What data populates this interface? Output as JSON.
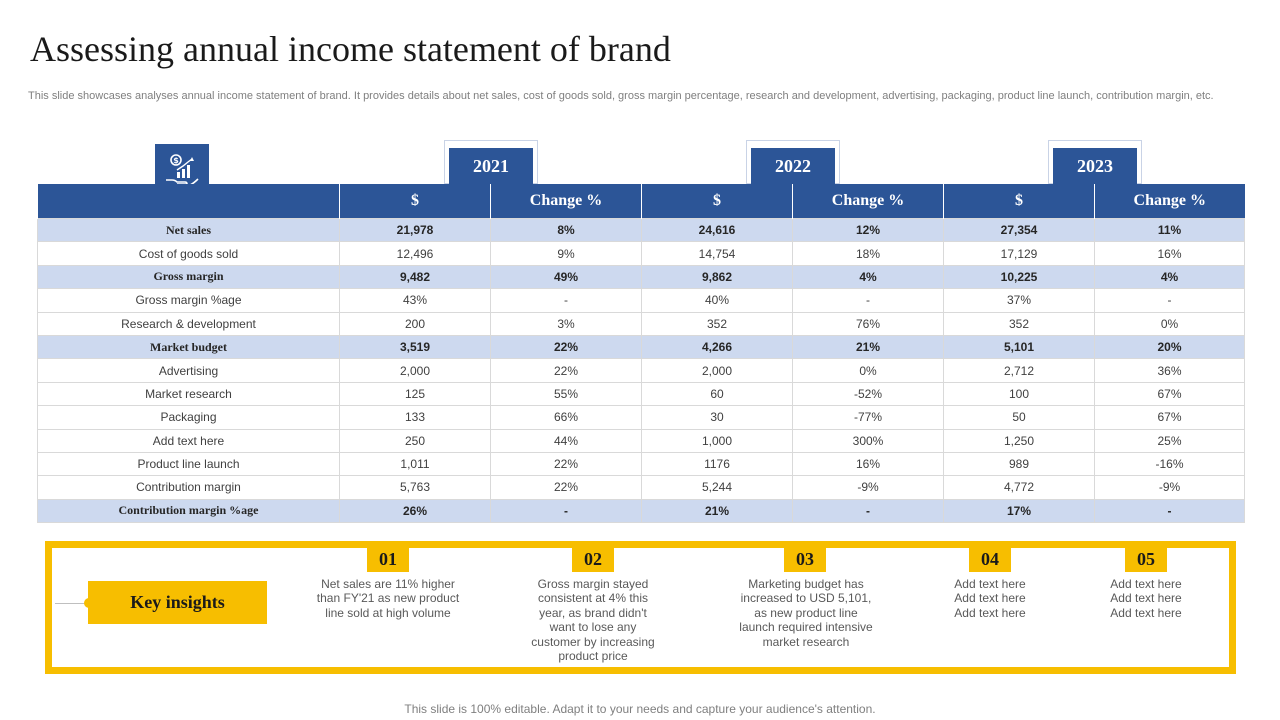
{
  "title": "Assessing annual income statement of brand",
  "subtitle": "This slide showcases analyses annual income statement of brand. It provides details about net sales, cost of goods sold, gross margin percentage, research and development, advertising, packaging, product line launch, contribution margin, etc.",
  "icon": "money-hand-growth-chart-icon",
  "years": [
    "2021",
    "2022",
    "2023"
  ],
  "headers": [
    "$",
    "Change %",
    "$",
    "Change %",
    "$",
    "Change %"
  ],
  "rows": [
    {
      "label": "Net sales",
      "highlight": true,
      "values": [
        "21,978",
        "8%",
        "24,616",
        "12%",
        "27,354",
        "11%"
      ]
    },
    {
      "label": "Cost of goods sold",
      "highlight": false,
      "values": [
        "12,496",
        "9%",
        "14,754",
        "18%",
        "17,129",
        "16%"
      ]
    },
    {
      "label": "Gross margin",
      "highlight": true,
      "values": [
        "9,482",
        "49%",
        "9,862",
        "4%",
        "10,225",
        "4%"
      ]
    },
    {
      "label": "Gross margin %age",
      "highlight": false,
      "values": [
        "43%",
        "-",
        "40%",
        "-",
        "37%",
        "-"
      ]
    },
    {
      "label": "Research & development",
      "highlight": false,
      "values": [
        "200",
        "3%",
        "352",
        "76%",
        "352",
        "0%"
      ]
    },
    {
      "label": "Market budget",
      "highlight": true,
      "values": [
        "3,519",
        "22%",
        "4,266",
        "21%",
        "5,101",
        "20%"
      ]
    },
    {
      "label": "Advertising",
      "highlight": false,
      "values": [
        "2,000",
        "22%",
        "2,000",
        "0%",
        "2,712",
        "36%"
      ]
    },
    {
      "label": "Market research",
      "highlight": false,
      "values": [
        "125",
        "55%",
        "60",
        "-52%",
        "100",
        "67%"
      ]
    },
    {
      "label": "Packaging",
      "highlight": false,
      "values": [
        "133",
        "66%",
        "30",
        "-77%",
        "50",
        "67%"
      ]
    },
    {
      "label": "Add text here",
      "highlight": false,
      "values": [
        "250",
        "44%",
        "1,000",
        "300%",
        "1,250",
        "25%"
      ]
    },
    {
      "label": "Product line launch",
      "highlight": false,
      "values": [
        "1,011",
        "22%",
        "1176",
        "16%",
        "989",
        "-16%"
      ]
    },
    {
      "label": "Contribution margin",
      "highlight": false,
      "values": [
        "5,763",
        "22%",
        "5,244",
        "-9%",
        "4,772",
        "-9%"
      ]
    },
    {
      "label": "Contribution  margin %age",
      "highlight": true,
      "values": [
        "26%",
        "-",
        "21%",
        "-",
        "17%",
        "-"
      ]
    }
  ],
  "key_insights_label": "Key insights",
  "insights": [
    {
      "num": "01",
      "text": "Net sales are 11% higher than FY'21 as new product line sold at high volume"
    },
    {
      "num": "02",
      "text": "Gross margin stayed consistent at 4% this year, as brand didn't want to lose any customer by increasing product price"
    },
    {
      "num": "03",
      "text": "Marketing budget has increased to USD 5,101, as new product line launch required intensive market research"
    },
    {
      "num": "04",
      "text": "Add text here Add text here Add text here"
    },
    {
      "num": "05",
      "text": "Add text here Add text here Add text here"
    }
  ],
  "footer": "This slide is 100% editable. Adapt it to your needs and capture your audience's attention.",
  "colors": {
    "primary_blue": "#2c5597",
    "highlight_row": "#cdd9ef",
    "accent_yellow": "#f7be00"
  }
}
